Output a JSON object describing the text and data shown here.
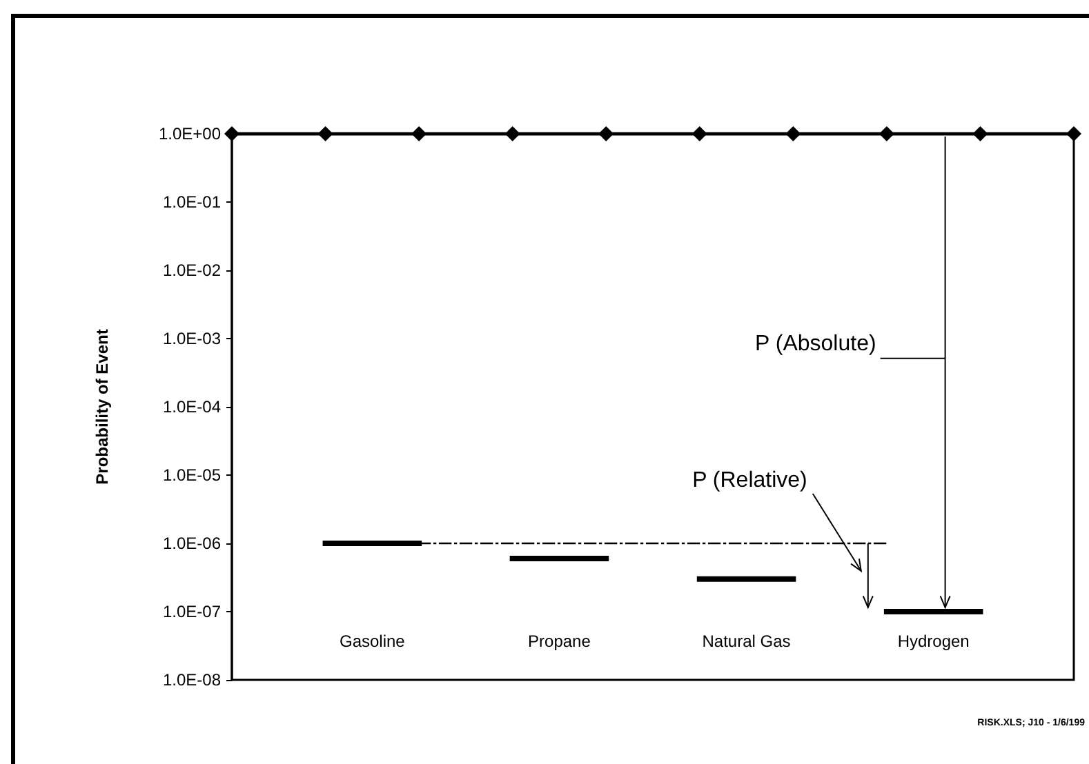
{
  "chart_data": {
    "type": "line",
    "categories": [
      null,
      null,
      null,
      "Gasoline",
      null,
      null,
      null,
      "Propane",
      null,
      null,
      null,
      "Natural Gas",
      null,
      null,
      null,
      "Hydrogen",
      null,
      null,
      null
    ],
    "ylabel": "Probability of Event",
    "log": "y",
    "ylim": [
      1e-08,
      1
    ],
    "yticks": [
      {
        "value": 1,
        "label": "1.0E+00"
      },
      {
        "value": 0.1,
        "label": "1.0E-01"
      },
      {
        "value": 0.01,
        "label": "1.0E-02"
      },
      {
        "value": 0.001,
        "label": "1.0E-03"
      },
      {
        "value": 0.0001,
        "label": "1.0E-04"
      },
      {
        "value": 1e-05,
        "label": "1.0E-05"
      },
      {
        "value": 1e-06,
        "label": "1.0E-06"
      },
      {
        "value": 1e-07,
        "label": "1.0E-07"
      },
      {
        "value": 1e-08,
        "label": "1.0E-08"
      }
    ],
    "grid": false,
    "series": [
      {
        "color": "#000000",
        "marker": "diamond",
        "line_style": "solid",
        "values": [
          1,
          null,
          1,
          null,
          1,
          null,
          1,
          null,
          1,
          null,
          1,
          null,
          1,
          null,
          1,
          null,
          1,
          null,
          1
        ]
      },
      {
        "color": "#000000",
        "marker": "none",
        "line_style": "solid",
        "values": [
          null,
          null,
          1e-06,
          1e-06,
          1e-06,
          null,
          null,
          null,
          null,
          null,
          null,
          null,
          null,
          null,
          null,
          null,
          null,
          null,
          null
        ]
      },
      {
        "color": "#000000",
        "marker": "none",
        "line_style": "solid",
        "values": [
          null,
          null,
          null,
          null,
          null,
          null,
          6e-07,
          6e-07,
          6e-07,
          null,
          null,
          null,
          null,
          null,
          null,
          null,
          null,
          null,
          null
        ]
      },
      {
        "color": "#000000",
        "marker": "none",
        "line_style": "solid",
        "values": [
          null,
          null,
          null,
          null,
          null,
          null,
          null,
          null,
          null,
          null,
          3e-07,
          3e-07,
          3e-07,
          null,
          null,
          null,
          null,
          null,
          null
        ]
      },
      {
        "color": "#000000",
        "marker": "none",
        "line_style": "solid",
        "values": [
          null,
          null,
          null,
          null,
          null,
          null,
          null,
          null,
          null,
          null,
          null,
          null,
          null,
          null,
          1e-07,
          1e-07,
          1e-07,
          null,
          null
        ]
      },
      {
        "color": "#000000",
        "marker": "none",
        "line_style": "dashed",
        "values": [
          null,
          null,
          null,
          null,
          1e-06,
          1e-06,
          1e-06,
          1e-06,
          1e-06,
          1e-06,
          1e-06,
          1e-06,
          1e-06,
          1e-06,
          1e-06,
          null,
          null,
          null,
          null
        ]
      }
    ],
    "annotations": [
      "P (Absolute)",
      "P (Relative)",
      "RISK.XLS; J10 - 1/6/199"
    ]
  }
}
